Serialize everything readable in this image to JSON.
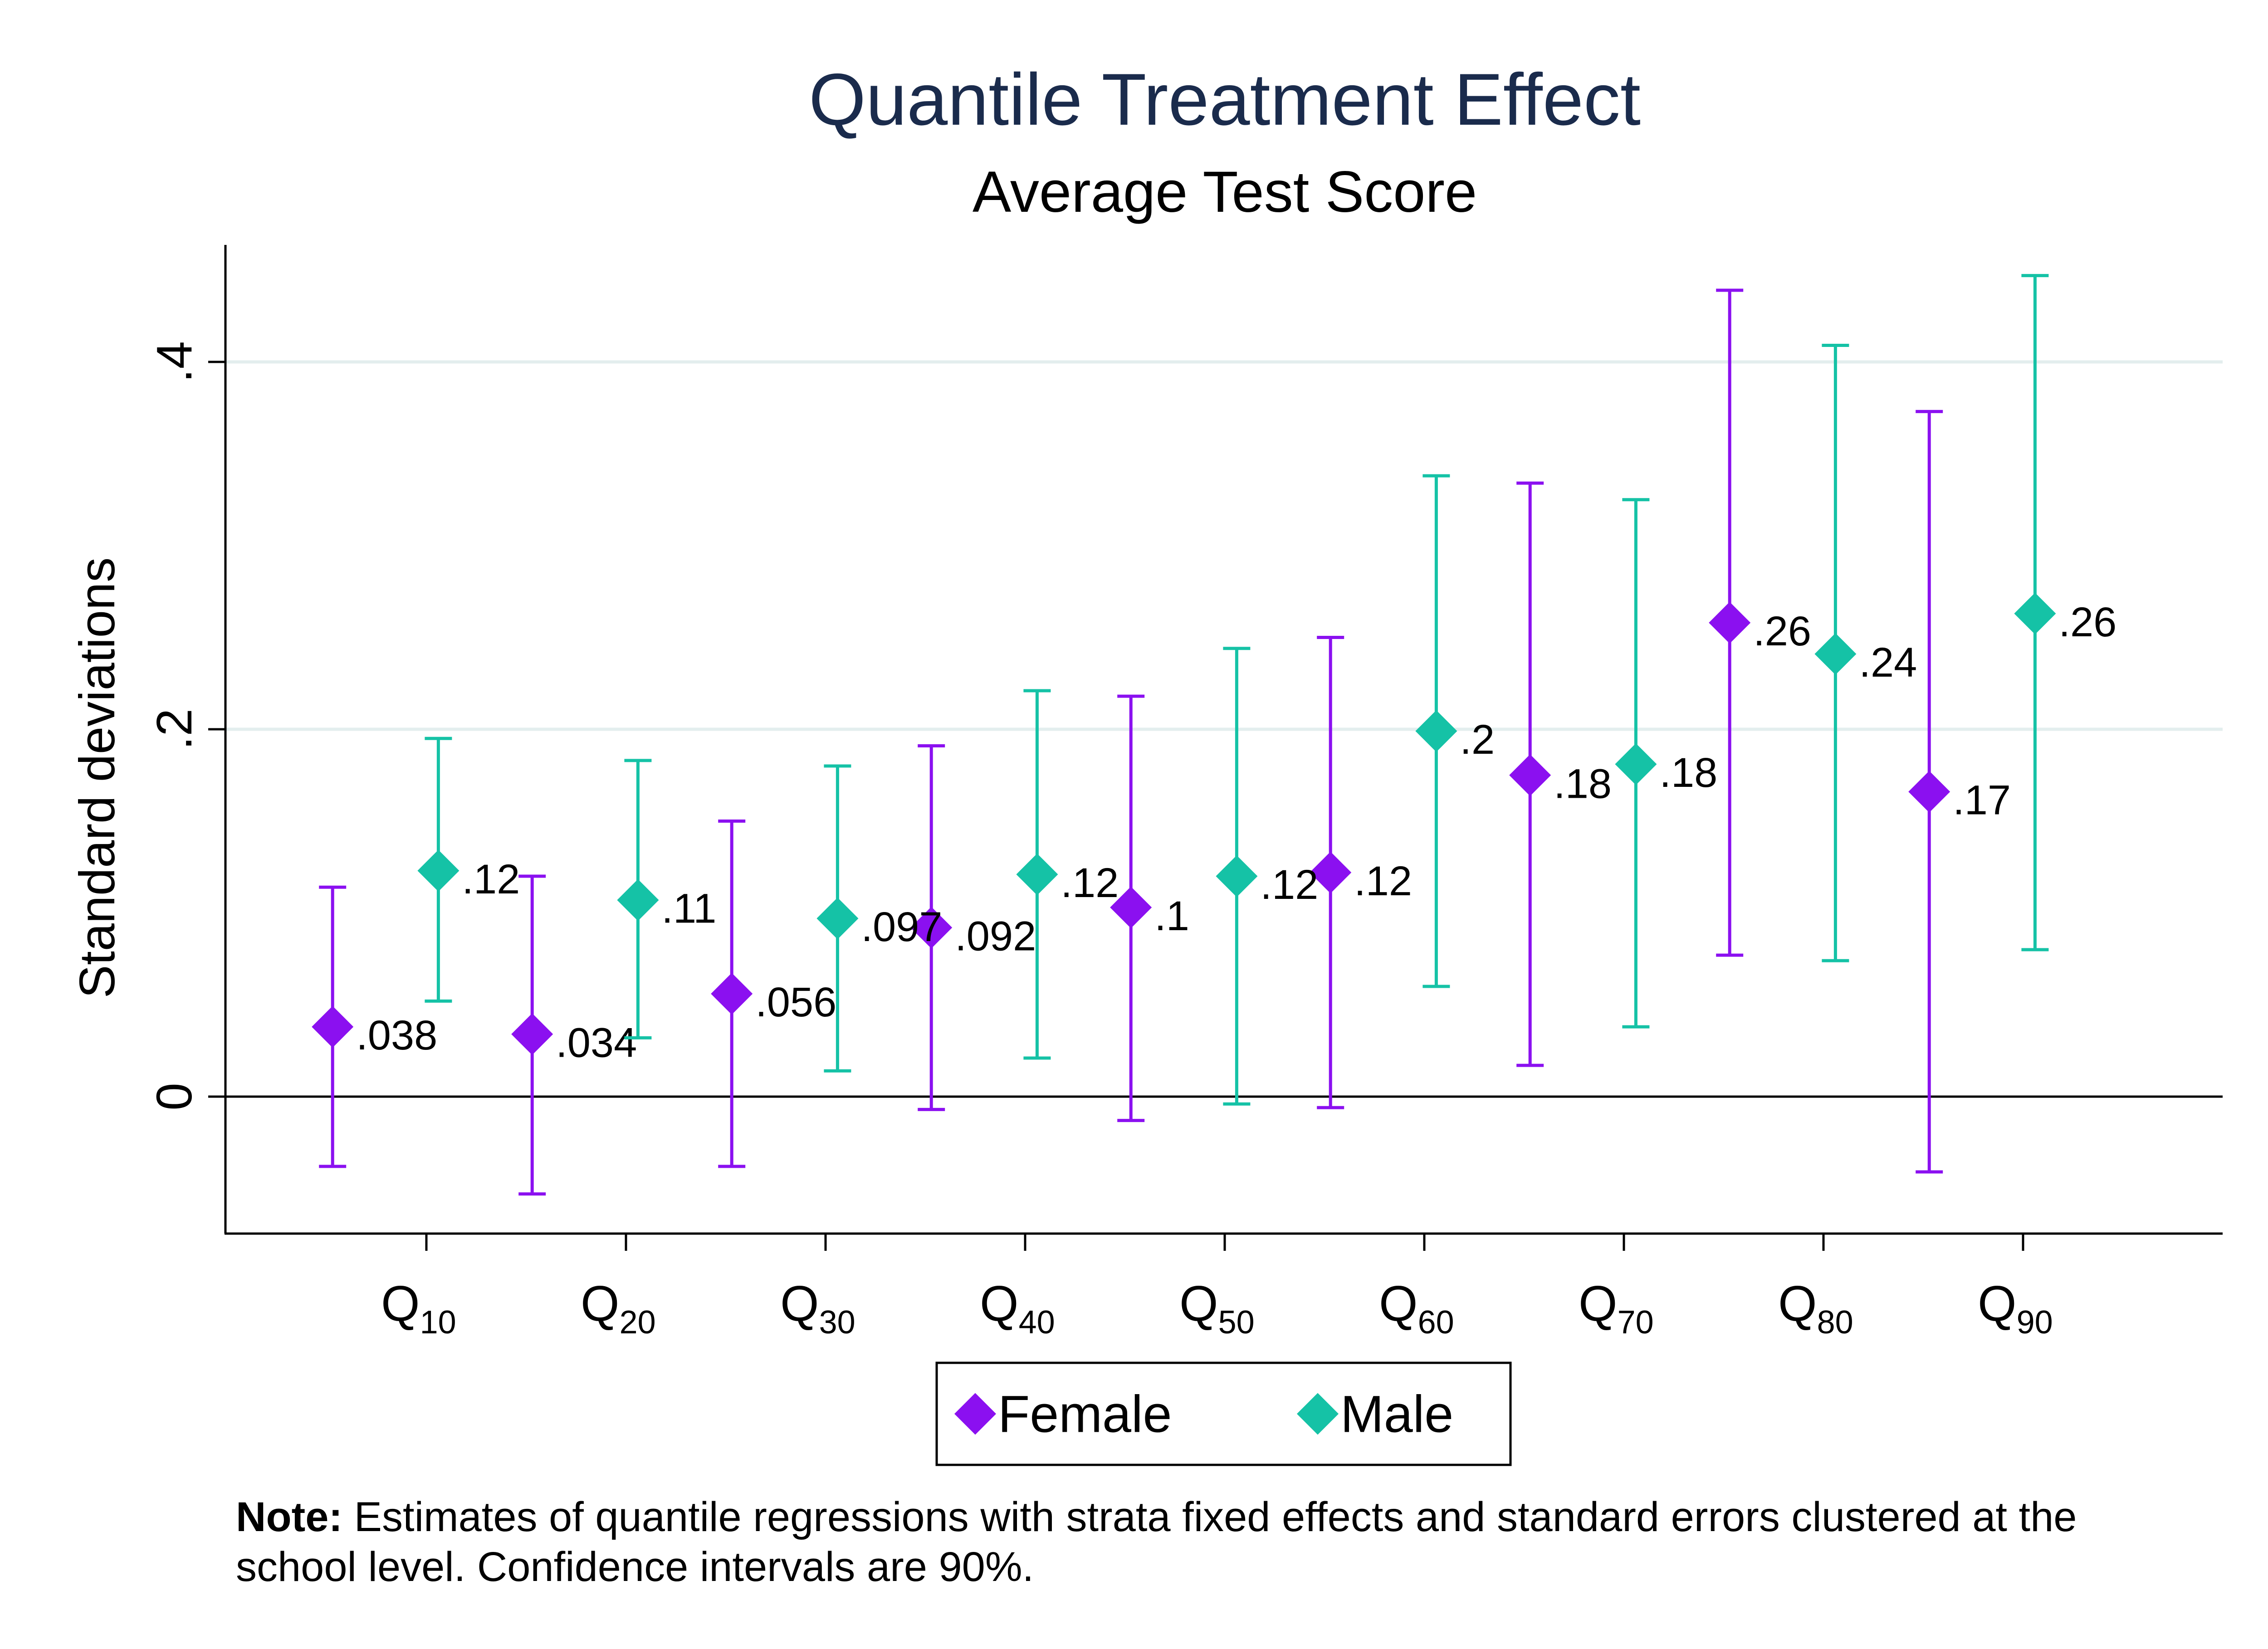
{
  "chart_data": {
    "type": "scatter",
    "title": "Quantile Treatment Effect",
    "subtitle": "Average Test Score",
    "ylabel": "Standard deviations",
    "xlabel": "",
    "ylim": [
      -0.073,
      0.465
    ],
    "yticks": [
      {
        "value": 0,
        "label": "0"
      },
      {
        "value": 0.2,
        "label": ".2"
      },
      {
        "value": 0.4,
        "label": ".4"
      }
    ],
    "grid": true,
    "categories": [
      {
        "base": "Q",
        "sub": "10"
      },
      {
        "base": "Q",
        "sub": "20"
      },
      {
        "base": "Q",
        "sub": "30"
      },
      {
        "base": "Q",
        "sub": "40"
      },
      {
        "base": "Q",
        "sub": "50"
      },
      {
        "base": "Q",
        "sub": "60"
      },
      {
        "base": "Q",
        "sub": "70"
      },
      {
        "base": "Q",
        "sub": "80"
      },
      {
        "base": "Q",
        "sub": "90"
      }
    ],
    "legend_position": "bottom",
    "series": [
      {
        "name": "Female",
        "color": "#8B10F0",
        "marker": "diamond",
        "offset": -0.47,
        "points": [
          {
            "y": 0.038,
            "lo": -0.038,
            "hi": 0.114,
            "label": ".038"
          },
          {
            "y": 0.034,
            "lo": -0.053,
            "hi": 0.12,
            "label": ".034"
          },
          {
            "y": 0.056,
            "lo": -0.038,
            "hi": 0.15,
            "label": ".056"
          },
          {
            "y": 0.092,
            "lo": -0.007,
            "hi": 0.191,
            "label": ".092"
          },
          {
            "y": 0.103,
            "lo": -0.013,
            "hi": 0.218,
            "label": ".1"
          },
          {
            "y": 0.122,
            "lo": -0.006,
            "hi": 0.25,
            "label": ".12"
          },
          {
            "y": 0.175,
            "lo": 0.017,
            "hi": 0.334,
            "label": ".18"
          },
          {
            "y": 0.258,
            "lo": 0.077,
            "hi": 0.439,
            "label": ".26"
          },
          {
            "y": 0.166,
            "lo": -0.041,
            "hi": 0.373,
            "label": ".17"
          }
        ]
      },
      {
        "name": "Male",
        "color": "#15C2A6",
        "marker": "diamond",
        "offset": 0.06,
        "points": [
          {
            "y": 0.123,
            "lo": 0.052,
            "hi": 0.195,
            "label": ".12"
          },
          {
            "y": 0.107,
            "lo": 0.032,
            "hi": 0.183,
            "label": ".11"
          },
          {
            "y": 0.097,
            "lo": 0.014,
            "hi": 0.18,
            "label": ".097"
          },
          {
            "y": 0.121,
            "lo": 0.021,
            "hi": 0.221,
            "label": ".12"
          },
          {
            "y": 0.12,
            "lo": -0.004,
            "hi": 0.244,
            "label": ".12"
          },
          {
            "y": 0.199,
            "lo": 0.06,
            "hi": 0.338,
            "label": ".2"
          },
          {
            "y": 0.181,
            "lo": 0.038,
            "hi": 0.325,
            "label": ".18"
          },
          {
            "y": 0.241,
            "lo": 0.074,
            "hi": 0.409,
            "label": ".24"
          },
          {
            "y": 0.263,
            "lo": 0.08,
            "hi": 0.447,
            "label": ".26"
          }
        ]
      }
    ]
  },
  "note": {
    "bold": "Note:",
    "text": " Estimates of quantile regressions with strata fixed effects and standard errors clustered at the school level. Confidence intervals are 90%."
  },
  "colors": {
    "title": "#1A2B4C",
    "grid": "#E3EEEE",
    "axis": "#000000"
  }
}
